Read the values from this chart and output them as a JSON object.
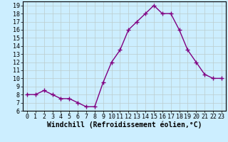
{
  "x": [
    0,
    1,
    2,
    3,
    4,
    5,
    6,
    7,
    8,
    9,
    10,
    11,
    12,
    13,
    14,
    15,
    16,
    17,
    18,
    19,
    20,
    21,
    22,
    23
  ],
  "y": [
    8,
    8,
    8.5,
    8,
    7.5,
    7.5,
    7,
    6.5,
    6.5,
    9.5,
    12,
    13.5,
    16,
    17,
    18,
    19,
    18,
    18,
    16,
    13.5,
    12,
    10.5,
    10,
    10
  ],
  "line_color": "#800080",
  "marker": "+",
  "marker_size": 4,
  "linewidth": 1.0,
  "xlabel": "Windchill (Refroidissement éolien,°C)",
  "xlabel_fontsize": 7,
  "ylim": [
    6,
    19.5
  ],
  "yticks": [
    6,
    7,
    8,
    9,
    10,
    11,
    12,
    13,
    14,
    15,
    16,
    17,
    18,
    19
  ],
  "xticks": [
    0,
    1,
    2,
    3,
    4,
    5,
    6,
    7,
    8,
    9,
    10,
    11,
    12,
    13,
    14,
    15,
    16,
    17,
    18,
    19,
    20,
    21,
    22,
    23
  ],
  "background_color": "#cceeff",
  "grid_color": "#bbcccc",
  "tick_fontsize": 6,
  "marker_edge_width": 1.0
}
